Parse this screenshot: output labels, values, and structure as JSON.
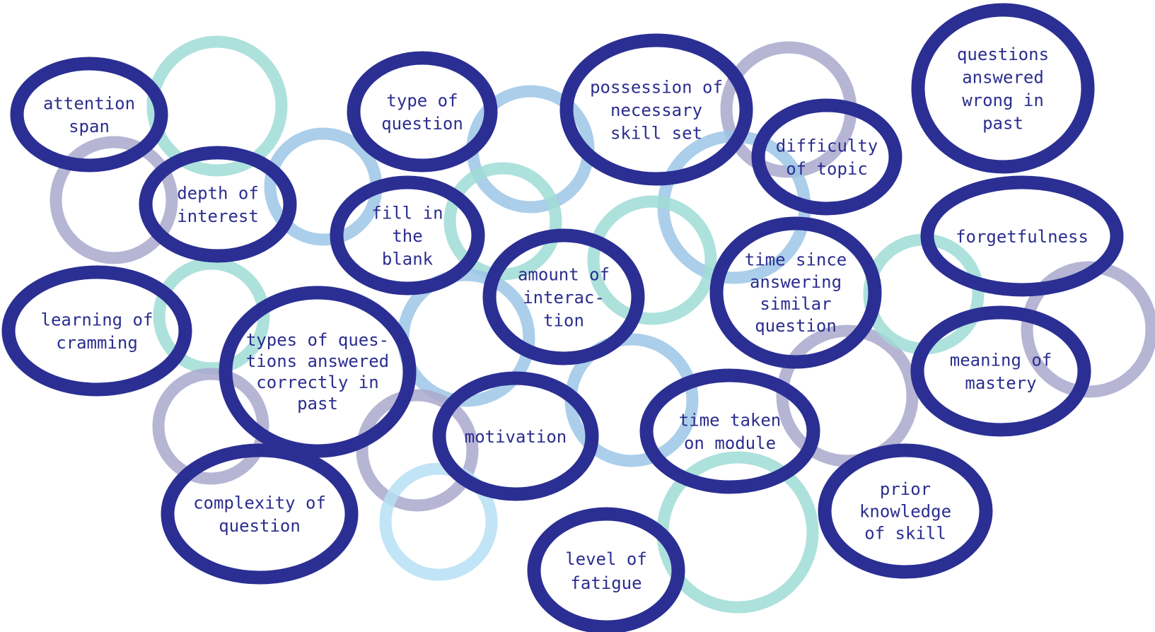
{
  "diagram": {
    "colors": {
      "navy": "#2b2f93",
      "teal": "#9fdcd6",
      "lightblue": "#9cc5e6",
      "lavender": "#a9a8cc",
      "paleblue": "#b6dff4",
      "text": "#2b2d8e"
    },
    "concepts": [
      {
        "id": "attention-span",
        "lines": [
          "attention",
          "span"
        ]
      },
      {
        "id": "depth-of-interest",
        "lines": [
          "depth of",
          "interest"
        ]
      },
      {
        "id": "learning-of-cramming",
        "lines": [
          "learning of",
          "cramming"
        ]
      },
      {
        "id": "type-of-question",
        "lines": [
          "type of",
          "question"
        ]
      },
      {
        "id": "fill-in-the-blank",
        "lines": [
          "fill in",
          "the",
          "blank"
        ]
      },
      {
        "id": "possession-of-necessary-skill-set",
        "lines": [
          "possession of",
          "necessary",
          "skill set"
        ]
      },
      {
        "id": "difficulty-of-topic",
        "lines": [
          "difficulty",
          "of topic"
        ]
      },
      {
        "id": "questions-answered-wrong-in-past",
        "lines": [
          "questions",
          "answered",
          "wrong in",
          "past"
        ]
      },
      {
        "id": "forgetfulness",
        "lines": [
          "forgetfulness"
        ]
      },
      {
        "id": "amount-of-interaction",
        "lines": [
          "amount of",
          "interac-",
          "tion"
        ]
      },
      {
        "id": "time-since-answering-similar-question",
        "lines": [
          "time since",
          "answering",
          "similar",
          "question"
        ]
      },
      {
        "id": "types-of-questions-answered-correctly-in-past",
        "lines": [
          "types of ques-",
          "tions answered",
          "correctly in",
          "past"
        ]
      },
      {
        "id": "meaning-of-mastery",
        "lines": [
          "meaning of",
          "mastery"
        ]
      },
      {
        "id": "motivation",
        "lines": [
          "motivation"
        ]
      },
      {
        "id": "time-taken-on-module",
        "lines": [
          "time taken",
          "on module"
        ]
      },
      {
        "id": "complexity-of-question",
        "lines": [
          "complexity of",
          "question"
        ]
      },
      {
        "id": "prior-knowledge-of-skill",
        "lines": [
          "prior",
          "knowledge",
          "of skill"
        ]
      },
      {
        "id": "level-of-fatigue",
        "lines": [
          "level of",
          "fatigue"
        ]
      }
    ]
  }
}
